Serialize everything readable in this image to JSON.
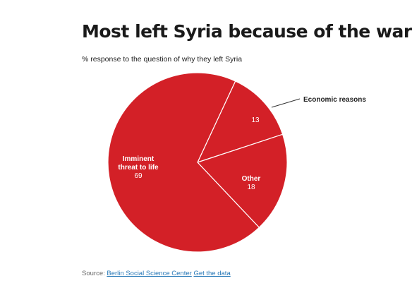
{
  "chart_data": {
    "type": "pie",
    "title": "Most left Syria because of the war",
    "subtitle": "% response to the question of why they left Syria",
    "slices": [
      {
        "label": "Economic reasons",
        "value": 13,
        "color": "#d32027"
      },
      {
        "label": "Other",
        "value": 18,
        "color": "#d32027"
      },
      {
        "label": "Imminent threat to life",
        "value": 69,
        "color": "#d32027"
      }
    ],
    "label_lines": {
      "threat": [
        "Imminent",
        "threat to life"
      ]
    },
    "slice_border_color": "#ffffff"
  },
  "footer": {
    "source_prefix": "Source:",
    "source_link": "Berlin Social Science Center",
    "data_link": "Get the data"
  }
}
